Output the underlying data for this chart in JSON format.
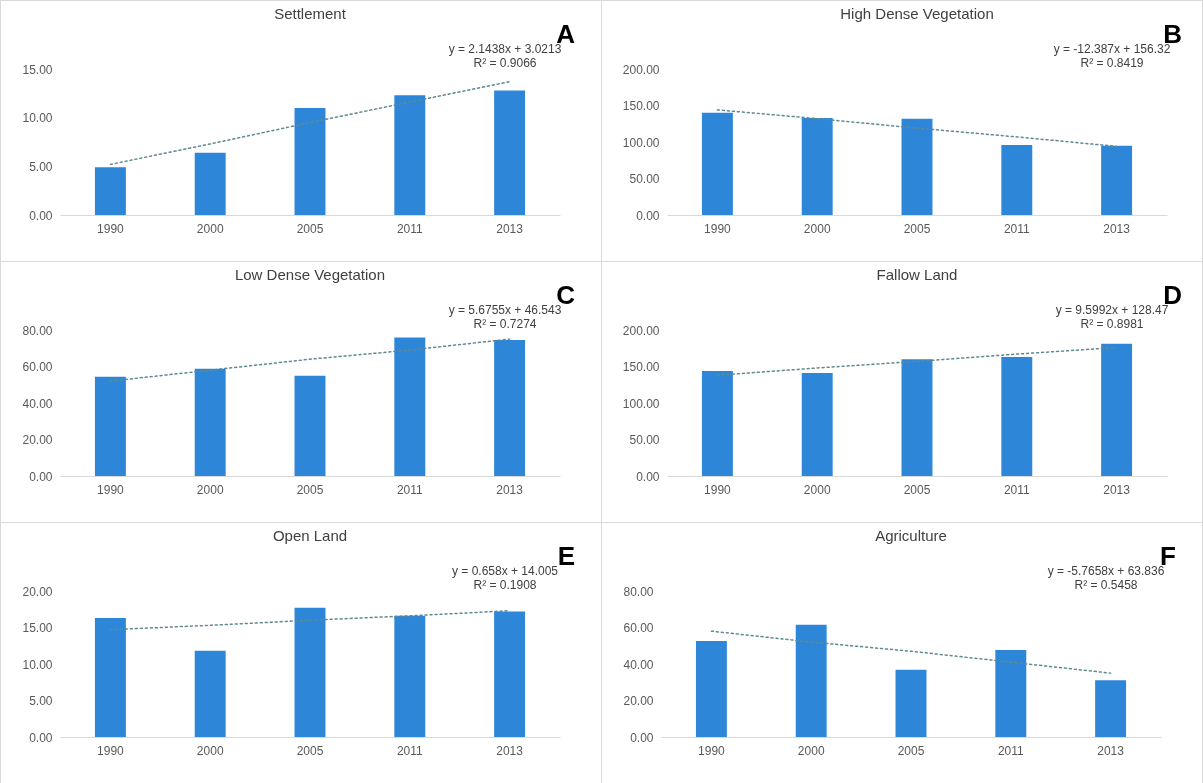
{
  "chart_data": [
    {
      "type": "bar",
      "title": "Settlement",
      "categories": [
        "1990",
        "2000",
        "2005",
        "2011",
        "2013"
      ],
      "ylim": [
        0,
        15
      ],
      "yticks": [
        {
          "value": 0,
          "label": "0.00"
        },
        {
          "value": 5,
          "label": "5.00"
        },
        {
          "value": 10,
          "label": "10.00"
        },
        {
          "value": 15,
          "label": "15.00"
        }
      ],
      "grid": false,
      "line_style": "dotted",
      "annotations": [
        "A",
        "y = 2.1438x + 3.0213",
        "R² = 0.9066"
      ],
      "series": [
        {
          "color": "#2e86d9",
          "values": [
            4.9,
            6.4,
            11.0,
            12.3,
            12.8
          ]
        },
        {
          "type": "line",
          "color": "#5f8a8f",
          "values": [
            5.2,
            7.3,
            9.5,
            11.6,
            13.7
          ]
        }
      ]
    },
    {
      "type": "bar",
      "title": "High Dense Vegetation",
      "categories": [
        "1990",
        "2000",
        "2005",
        "2011",
        "2013"
      ],
      "ylim": [
        0,
        200
      ],
      "yticks": [
        {
          "value": 0,
          "label": "0.00"
        },
        {
          "value": 50,
          "label": "50.00"
        },
        {
          "value": 100,
          "label": "100.00"
        },
        {
          "value": 150,
          "label": "150.00"
        },
        {
          "value": 200,
          "label": "200.00"
        }
      ],
      "grid": false,
      "line_style": "dotted",
      "annotations": [
        "B",
        "y = -12.387x + 156.32",
        "R² = 0.8419"
      ],
      "series": [
        {
          "color": "#2e86d9",
          "values": [
            140,
            133,
            132,
            96,
            95
          ]
        },
        {
          "type": "line",
          "color": "#5f8a8f",
          "values": [
            144,
            132,
            119,
            107,
            94
          ]
        }
      ]
    },
    {
      "type": "bar",
      "title": "Low Dense Vegetation",
      "categories": [
        "1990",
        "2000",
        "2005",
        "2011",
        "2013"
      ],
      "ylim": [
        0,
        80
      ],
      "yticks": [
        {
          "value": 0,
          "label": "0.00"
        },
        {
          "value": 20,
          "label": "20.00"
        },
        {
          "value": 40,
          "label": "40.00"
        },
        {
          "value": 60,
          "label": "60.00"
        },
        {
          "value": 80,
          "label": "80.00"
        }
      ],
      "grid": false,
      "line_style": "dotted",
      "annotations": [
        "C",
        "y = 5.6755x + 46.543",
        "R² = 0.7274"
      ],
      "series": [
        {
          "color": "#2e86d9",
          "values": [
            54.4,
            58.7,
            55.0,
            75.9,
            74.5
          ]
        },
        {
          "type": "line",
          "color": "#5f8a8f",
          "values": [
            52,
            58,
            64,
            69,
            75
          ]
        }
      ]
    },
    {
      "type": "bar",
      "title": "Fallow Land",
      "categories": [
        "1990",
        "2000",
        "2005",
        "2011",
        "2013"
      ],
      "ylim": [
        0,
        200
      ],
      "yticks": [
        {
          "value": 0,
          "label": "0.00"
        },
        {
          "value": 50,
          "label": "50.00"
        },
        {
          "value": 100,
          "label": "100.00"
        },
        {
          "value": 150,
          "label": "150.00"
        },
        {
          "value": 200,
          "label": "200.00"
        }
      ],
      "grid": false,
      "line_style": "dotted",
      "annotations": [
        "D",
        "y = 9.5992x + 128.47",
        "R² = 0.8981"
      ],
      "series": [
        {
          "color": "#2e86d9",
          "values": [
            144,
            141,
            160,
            163,
            181
          ]
        },
        {
          "type": "line",
          "color": "#5f8a8f",
          "values": [
            138,
            148,
            157,
            167,
            176
          ]
        }
      ]
    },
    {
      "type": "bar",
      "title": "Open Land",
      "categories": [
        "1990",
        "2000",
        "2005",
        "2011",
        "2013"
      ],
      "ylim": [
        0,
        20
      ],
      "yticks": [
        {
          "value": 0,
          "label": "0.00"
        },
        {
          "value": 5,
          "label": "5.00"
        },
        {
          "value": 10,
          "label": "10.00"
        },
        {
          "value": 15,
          "label": "15.00"
        },
        {
          "value": 20,
          "label": "20.00"
        }
      ],
      "grid": false,
      "line_style": "dotted",
      "annotations": [
        "E",
        "y = 0.658x + 14.005",
        "R² = 0.1908"
      ],
      "series": [
        {
          "color": "#2e86d9",
          "values": [
            16.3,
            11.8,
            17.7,
            16.6,
            17.2
          ]
        },
        {
          "type": "line",
          "color": "#5f8a8f",
          "values": [
            14.7,
            15.3,
            16.0,
            16.6,
            17.3
          ]
        }
      ]
    },
    {
      "type": "bar",
      "title": "Agriculture",
      "categories": [
        "1990",
        "2000",
        "2005",
        "2011",
        "2013"
      ],
      "ylim": [
        0,
        80
      ],
      "yticks": [
        {
          "value": 0,
          "label": "0.00"
        },
        {
          "value": 20,
          "label": "20.00"
        },
        {
          "value": 40,
          "label": "40.00"
        },
        {
          "value": 60,
          "label": "60.00"
        },
        {
          "value": 80,
          "label": "80.00"
        }
      ],
      "grid": false,
      "line_style": "dotted",
      "annotations": [
        "F",
        "y = -5.7658x + 63.836",
        "R² = 0.5458"
      ],
      "series": [
        {
          "color": "#2e86d9",
          "values": [
            52.6,
            61.5,
            36.8,
            47.7,
            31.1
          ]
        },
        {
          "type": "line",
          "color": "#5f8a8f",
          "values": [
            58,
            52,
            47,
            41,
            35
          ]
        }
      ]
    }
  ]
}
